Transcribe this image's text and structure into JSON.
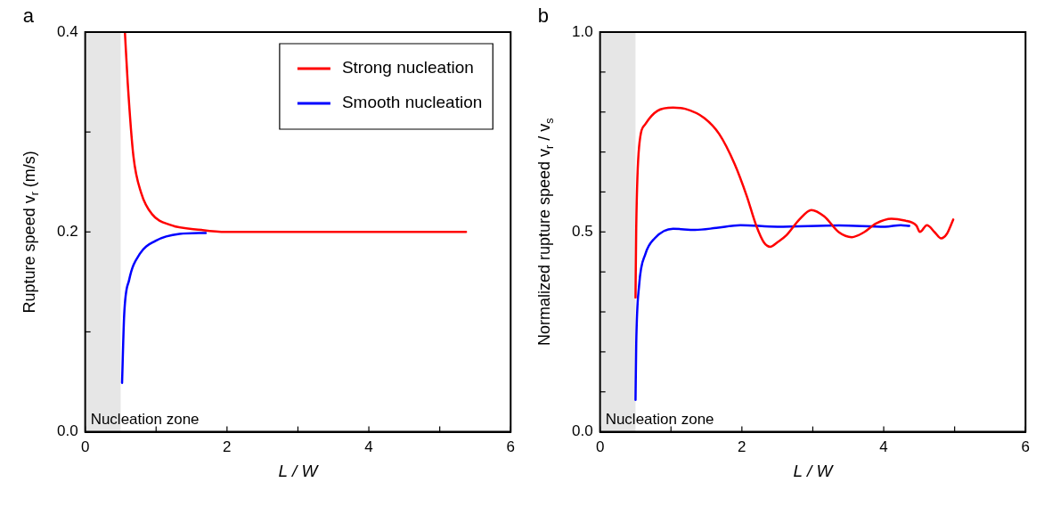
{
  "chart_data": [
    {
      "type": "line",
      "title": "a",
      "xlabel": "L / W",
      "ylabel": "Rupture speed v$_{r}$ (m/s)",
      "xlim": [
        0,
        6
      ],
      "ylim": [
        0,
        0.4
      ],
      "xticks": [
        0,
        {
          "value": 1,
          "label": null
        },
        2,
        {
          "value": 3,
          "label": null
        },
        4,
        {
          "value": 5,
          "label": null
        },
        6
      ],
      "yticks": [
        {
          "value": 0,
          "label": "0.0"
        },
        {
          "value": 0.1,
          "label": null
        },
        0.2,
        {
          "value": 0.3,
          "label": null
        },
        0.4
      ],
      "grid": false,
      "legend": "top right",
      "line_style": "solid",
      "marker": "none",
      "bands": [
        {
          "axis": "x",
          "from": 0,
          "to": 0.5,
          "label": "Nucleation zone",
          "color": "#e6e6e6"
        }
      ],
      "series": [
        {
          "name": "Strong nucleation",
          "color": "#ff0000",
          "x": [
            0.56,
            0.6,
            0.68,
            0.79,
            0.94,
            1.2,
            1.64,
            1.98,
            3,
            4,
            5.37
          ],
          "values": [
            0.4,
            0.349,
            0.276,
            0.239,
            0.218,
            0.207,
            0.202,
            0.2,
            0.2,
            0.2,
            0.2
          ]
        },
        {
          "name": "Smooth nucleation",
          "color": "#0000ff",
          "x": [
            0.52,
            0.55,
            0.62,
            0.77,
            0.99,
            1.33,
            1.7
          ],
          "values": [
            0.049,
            0.117,
            0.152,
            0.178,
            0.191,
            0.198,
            0.199
          ]
        }
      ]
    },
    {
      "type": "line",
      "title": "b",
      "xlabel": "L / W",
      "ylabel": "Normalized rupture speed v$_{r}$ / v$_{s}$",
      "xlim": [
        0,
        6
      ],
      "ylim": [
        0,
        1
      ],
      "xticks": [
        0,
        {
          "value": 1,
          "label": null
        },
        2,
        {
          "value": 3,
          "label": null
        },
        4,
        {
          "value": 5,
          "label": null
        },
        6
      ],
      "yticks": [
        {
          "value": 0,
          "label": "0.0"
        },
        {
          "value": 0.1,
          "label": null
        },
        {
          "value": 0.2,
          "label": null
        },
        {
          "value": 0.3,
          "label": null
        },
        {
          "value": 0.4,
          "label": null
        },
        0.5,
        {
          "value": 0.6,
          "label": null
        },
        {
          "value": 0.7,
          "label": null
        },
        {
          "value": 0.8,
          "label": null
        },
        {
          "value": 0.9,
          "label": null
        },
        {
          "value": 1,
          "label": "1.0"
        }
      ],
      "grid": false,
      "line_style": "solid",
      "marker": "none",
      "bands": [
        {
          "axis": "x",
          "from": 0,
          "to": 0.5,
          "label": "Nucleation zone",
          "color": "#e6e6e6"
        }
      ],
      "series": [
        {
          "color": "#ff0000",
          "x": [
            0.5,
            0.51,
            0.55,
            0.64,
            0.81,
            1.03,
            1.2,
            1.47,
            1.68,
            1.9,
            2.07,
            2.2,
            2.31,
            2.4,
            2.5,
            2.63,
            2.81,
            2.98,
            3.16,
            3.37,
            3.55,
            3.72,
            3.89,
            4.11,
            4.28,
            4.46,
            4.51,
            4.61,
            4.72,
            4.81,
            4.89,
            4.98
          ],
          "values": [
            0.336,
            0.51,
            0.712,
            0.77,
            0.803,
            0.811,
            0.808,
            0.785,
            0.745,
            0.669,
            0.589,
            0.517,
            0.474,
            0.463,
            0.474,
            0.492,
            0.531,
            0.555,
            0.539,
            0.499,
            0.487,
            0.499,
            0.521,
            0.533,
            0.529,
            0.516,
            0.5,
            0.517,
            0.499,
            0.484,
            0.495,
            0.531
          ]
        },
        {
          "color": "#0000ff",
          "x": [
            0.5,
            0.51,
            0.55,
            0.64,
            0.77,
            1.03,
            1.34,
            1.64,
            1.98,
            2.5,
            3.37,
            4.02,
            4.24,
            4.36
          ],
          "values": [
            0.08,
            0.22,
            0.365,
            0.445,
            0.484,
            0.508,
            0.505,
            0.51,
            0.517,
            0.513,
            0.516,
            0.513,
            0.517,
            0.515
          ]
        }
      ]
    }
  ]
}
